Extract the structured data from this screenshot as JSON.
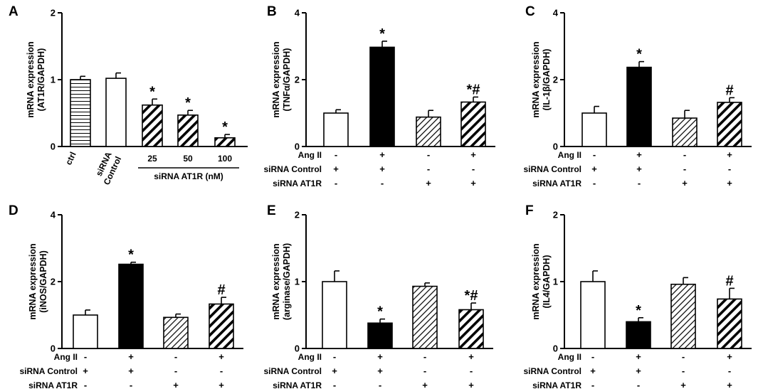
{
  "colors": {
    "ink": "#000000",
    "paper": "#ffffff"
  },
  "chart_data": [
    {
      "panel": "A",
      "type": "bar",
      "ylabel_lines": [
        "mRNA expression",
        "(AT1R/GAPDH)"
      ],
      "ylim": [
        0,
        2
      ],
      "yticks": [
        0,
        1,
        2
      ],
      "categories": [
        {
          "lines": [
            "ctrl"
          ],
          "rotate": true
        },
        {
          "lines": [
            "siRNA",
            "Control"
          ],
          "rotate": true
        },
        {
          "lines": [
            "25"
          ],
          "rotate": false
        },
        {
          "lines": [
            "50"
          ],
          "rotate": false
        },
        {
          "lines": [
            "100"
          ],
          "rotate": false
        }
      ],
      "values": [
        1.0,
        1.02,
        0.62,
        0.47,
        0.13
      ],
      "errors": [
        0.05,
        0.08,
        0.09,
        0.07,
        0.05
      ],
      "fills": [
        "horizontal",
        "white",
        "diagonal-thick",
        "diagonal-thick",
        "diagonal-thick"
      ],
      "annotations": [
        "",
        "",
        "*",
        "*",
        "*"
      ],
      "group_label": "siRNA AT1R (nM)"
    },
    {
      "panel": "B",
      "type": "bar",
      "ylabel_lines": [
        "mRNA expression",
        "(TNFα/GAPDH)"
      ],
      "ylim": [
        0,
        4
      ],
      "yticks": [
        0,
        2,
        4
      ],
      "values": [
        1.0,
        2.97,
        0.88,
        1.33
      ],
      "errors": [
        0.1,
        0.18,
        0.2,
        0.15
      ],
      "fills": [
        "white",
        "black",
        "diagonal-thin",
        "diagonal-thick"
      ],
      "annotations": [
        "",
        "*",
        "",
        "*#"
      ],
      "treatments": [
        {
          "label": "Ang II",
          "values": [
            "-",
            "+",
            "-",
            "+"
          ]
        },
        {
          "label": "siRNA Control",
          "values": [
            "+",
            "+",
            "-",
            "-"
          ]
        },
        {
          "label": "siRNA AT1R",
          "values": [
            "-",
            "-",
            "+",
            "+"
          ]
        }
      ]
    },
    {
      "panel": "C",
      "type": "bar",
      "ylabel_lines": [
        "mRNA expression",
        "(IL-1β/GAPDH)"
      ],
      "ylim": [
        0,
        4
      ],
      "yticks": [
        0,
        2,
        4
      ],
      "values": [
        1.0,
        2.37,
        0.85,
        1.32
      ],
      "errors": [
        0.2,
        0.17,
        0.23,
        0.14
      ],
      "fills": [
        "white",
        "black",
        "diagonal-thin",
        "diagonal-thick"
      ],
      "annotations": [
        "",
        "*",
        "",
        "#"
      ],
      "treatments": [
        {
          "label": "Ang II",
          "values": [
            "-",
            "+",
            "-",
            "+"
          ]
        },
        {
          "label": "siRNA Control",
          "values": [
            "+",
            "+",
            "-",
            "-"
          ]
        },
        {
          "label": "siRNA AT1R",
          "values": [
            "-",
            "-",
            "+",
            "+"
          ]
        }
      ]
    },
    {
      "panel": "D",
      "type": "bar",
      "ylabel_lines": [
        "mRNA expression",
        "(iNOS/GAPDH)"
      ],
      "ylim": [
        0,
        4
      ],
      "yticks": [
        0,
        2,
        4
      ],
      "values": [
        1.0,
        2.52,
        0.93,
        1.33
      ],
      "errors": [
        0.15,
        0.06,
        0.1,
        0.2
      ],
      "fills": [
        "white",
        "black",
        "diagonal-thin",
        "diagonal-thick"
      ],
      "annotations": [
        "",
        "*",
        "",
        "#"
      ],
      "treatments": [
        {
          "label": "Ang II",
          "values": [
            "-",
            "+",
            "-",
            "+"
          ]
        },
        {
          "label": "siRNA Control",
          "values": [
            "+",
            "+",
            "-",
            "-"
          ]
        },
        {
          "label": "siRNA AT1R",
          "values": [
            "-",
            "-",
            "+",
            "+"
          ]
        }
      ]
    },
    {
      "panel": "E",
      "type": "bar",
      "ylabel_lines": [
        "mRNA expression",
        "(arginase/GAPDH)"
      ],
      "ylim": [
        0,
        2
      ],
      "yticks": [
        0,
        1,
        2
      ],
      "values": [
        1.0,
        0.38,
        0.93,
        0.58
      ],
      "errors": [
        0.16,
        0.06,
        0.05,
        0.1
      ],
      "fills": [
        "white",
        "black",
        "diagonal-thin",
        "diagonal-thick"
      ],
      "annotations": [
        "",
        "*",
        "",
        "*#"
      ],
      "treatments": [
        {
          "label": "Ang II",
          "values": [
            "-",
            "+",
            "-",
            "+"
          ]
        },
        {
          "label": "siRNA Control",
          "values": [
            "+",
            "+",
            "-",
            "-"
          ]
        },
        {
          "label": "siRNA AT1R",
          "values": [
            "-",
            "-",
            "+",
            "+"
          ]
        }
      ]
    },
    {
      "panel": "F",
      "type": "bar",
      "ylabel_lines": [
        "mRNA expression",
        "(IL4/GAPDH)"
      ],
      "ylim": [
        0,
        2
      ],
      "yticks": [
        0,
        1,
        2
      ],
      "values": [
        1.0,
        0.4,
        0.96,
        0.74
      ],
      "errors": [
        0.16,
        0.06,
        0.1,
        0.16
      ],
      "fills": [
        "white",
        "black",
        "diagonal-thin",
        "diagonal-thick"
      ],
      "annotations": [
        "",
        "*",
        "",
        "#"
      ],
      "treatments": [
        {
          "label": "Ang II",
          "values": [
            "-",
            "+",
            "-",
            "+"
          ]
        },
        {
          "label": "siRNA Control",
          "values": [
            "+",
            "+",
            "-",
            "-"
          ]
        },
        {
          "label": "siRNA AT1R",
          "values": [
            "-",
            "-",
            "+",
            "+"
          ]
        }
      ]
    }
  ]
}
